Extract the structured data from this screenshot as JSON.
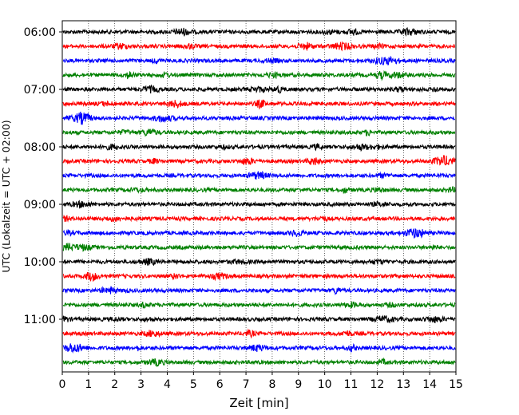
{
  "chart_data": {
    "type": "line",
    "title": "",
    "xlabel": "Zeit  [min]",
    "ylabel": "UTC (Lokalzeit = UTC + 02:00)",
    "xlim": [
      0,
      15
    ],
    "x_ticks": [
      0,
      1,
      2,
      3,
      4,
      5,
      6,
      7,
      8,
      9,
      10,
      11,
      12,
      13,
      14,
      15
    ],
    "y_ticks": [
      "06:00",
      "07:00",
      "08:00",
      "09:00",
      "10:00",
      "11:00"
    ],
    "grid": "vertical dotted lines at each minute",
    "trace_colors": [
      "#000000",
      "#ff0000",
      "#0000ff",
      "#008000"
    ],
    "traces": [
      {
        "start": "06:00",
        "color": "#000000"
      },
      {
        "start": "06:15",
        "color": "#ff0000"
      },
      {
        "start": "06:30",
        "color": "#0000ff"
      },
      {
        "start": "06:45",
        "color": "#008000"
      },
      {
        "start": "07:00",
        "color": "#000000"
      },
      {
        "start": "07:15",
        "color": "#ff0000"
      },
      {
        "start": "07:30",
        "color": "#0000ff"
      },
      {
        "start": "07:45",
        "color": "#008000"
      },
      {
        "start": "08:00",
        "color": "#000000"
      },
      {
        "start": "08:15",
        "color": "#ff0000"
      },
      {
        "start": "08:30",
        "color": "#0000ff"
      },
      {
        "start": "08:45",
        "color": "#008000"
      },
      {
        "start": "09:00",
        "color": "#000000"
      },
      {
        "start": "09:15",
        "color": "#ff0000"
      },
      {
        "start": "09:30",
        "color": "#0000ff"
      },
      {
        "start": "09:45",
        "color": "#008000"
      },
      {
        "start": "10:00",
        "color": "#000000"
      },
      {
        "start": "10:15",
        "color": "#ff0000"
      },
      {
        "start": "10:30",
        "color": "#0000ff"
      },
      {
        "start": "10:45",
        "color": "#008000"
      },
      {
        "start": "11:00",
        "color": "#000000"
      },
      {
        "start": "11:15",
        "color": "#ff0000"
      },
      {
        "start": "11:30",
        "color": "#0000ff"
      },
      {
        "start": "11:45",
        "color": "#008000"
      }
    ]
  }
}
